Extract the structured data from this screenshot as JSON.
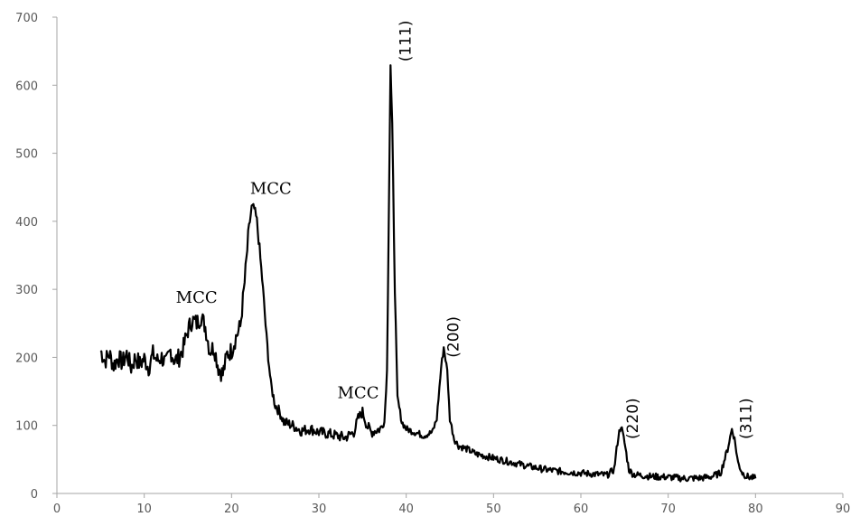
{
  "chart_data": {
    "type": "line",
    "title": "",
    "xlabel": "",
    "ylabel": "",
    "xlim": [
      0,
      90
    ],
    "ylim": [
      0,
      700
    ],
    "xticks": [
      "0",
      "10",
      "20",
      "30",
      "40",
      "50",
      "60",
      "70",
      "80",
      "90"
    ],
    "yticks": [
      "0",
      "100",
      "200",
      "300",
      "400",
      "500",
      "600",
      "700"
    ],
    "grid": false,
    "legend": "none",
    "line_color": "#000000",
    "series": [
      {
        "x": [
          5,
          5.5,
          6,
          6.5,
          7,
          7.5,
          8,
          8.5,
          9,
          9.5,
          10,
          10.5,
          11,
          11.5,
          12,
          12.5,
          13,
          13.5,
          14,
          14.5,
          15,
          15.5,
          16,
          16.5,
          17,
          17.5,
          18,
          18.5,
          19,
          19.5,
          20,
          20.5,
          21,
          21.5,
          22,
          22.3,
          22.6,
          22.9,
          23.2,
          23.6,
          24,
          24.5,
          25,
          25.5,
          26,
          27,
          28,
          29,
          30,
          31,
          32,
          33,
          34,
          34.5,
          35,
          35.5,
          36,
          37,
          37.5,
          37.8,
          38,
          38.2,
          38.4,
          38.7,
          39,
          39.5,
          40,
          41,
          42,
          43,
          43.5,
          44,
          44.3,
          44.7,
          45,
          45.5,
          46,
          47,
          48,
          50,
          52,
          54,
          56,
          58,
          60,
          62,
          63,
          63.8,
          64.3,
          64.6,
          65,
          65.5,
          66,
          68,
          70,
          72,
          74,
          75,
          76,
          76.8,
          77.3,
          77.6,
          78,
          78.5,
          79,
          80
        ],
        "y": [
          210,
          195,
          205,
          188,
          200,
          192,
          205,
          185,
          200,
          190,
          198,
          185,
          205,
          195,
          200,
          190,
          210,
          195,
          200,
          215,
          240,
          255,
          250,
          260,
          245,
          210,
          215,
          185,
          175,
          205,
          210,
          230,
          245,
          310,
          390,
          420,
          418,
          400,
          360,
          300,
          230,
          160,
          130,
          120,
          105,
          100,
          92,
          95,
          90,
          88,
          85,
          82,
          90,
          110,
          120,
          100,
          90,
          95,
          105,
          180,
          400,
          630,
          540,
          300,
          140,
          105,
          95,
          90,
          85,
          90,
          110,
          185,
          215,
          180,
          110,
          80,
          70,
          65,
          58,
          52,
          46,
          40,
          35,
          32,
          30,
          28,
          27,
          35,
          85,
          100,
          75,
          35,
          28,
          25,
          24,
          22,
          23,
          25,
          30,
          65,
          95,
          80,
          45,
          30,
          25,
          22
        ]
      }
    ],
    "annotations": [
      {
        "text": "MCC",
        "x": 16,
        "y": 280,
        "style": "serif",
        "rotation": 0
      },
      {
        "text": "MCC",
        "x": 24.5,
        "y": 440,
        "style": "serif",
        "rotation": 0
      },
      {
        "text": "MCC",
        "x": 34.5,
        "y": 140,
        "style": "serif",
        "rotation": 0
      },
      {
        "text": "(111)",
        "x": 40.5,
        "y": 665,
        "style": "sans",
        "rotation": -90
      },
      {
        "text": "(200)",
        "x": 46,
        "y": 230,
        "style": "sans",
        "rotation": -90
      },
      {
        "text": "(220)",
        "x": 66.5,
        "y": 110,
        "style": "sans",
        "rotation": -90
      },
      {
        "text": "(311)",
        "x": 79.5,
        "y": 110,
        "style": "sans",
        "rotation": -90
      }
    ]
  }
}
